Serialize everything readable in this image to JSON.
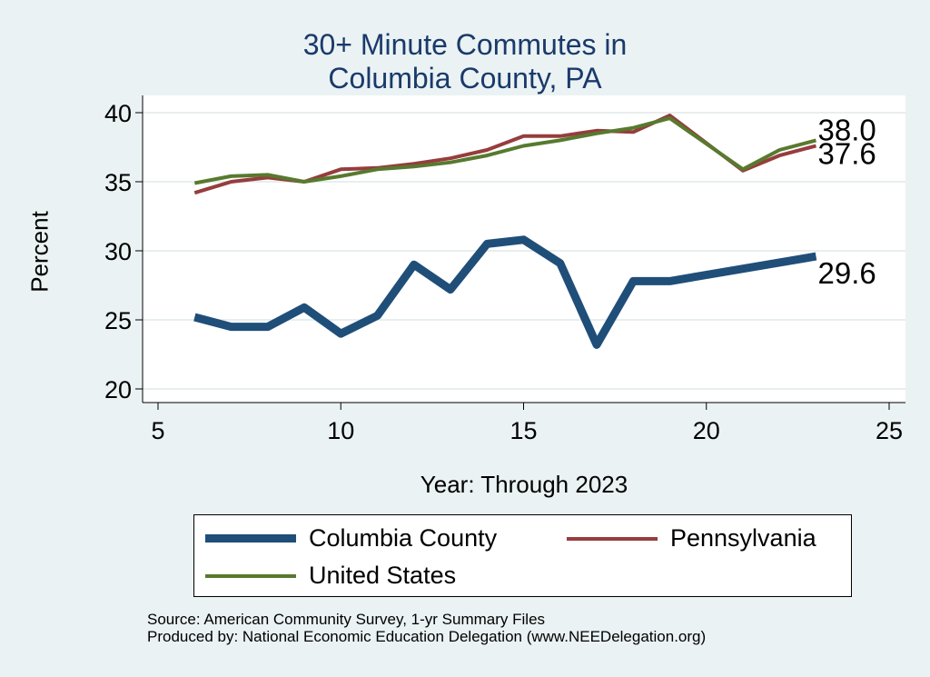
{
  "chart_data": {
    "type": "line",
    "title": [
      "30+ Minute Commutes in",
      "Columbia County, PA"
    ],
    "xlabel": "Year: Through 2023",
    "ylabel": "Percent",
    "xlim": [
      5,
      25
    ],
    "ylim": [
      20,
      40
    ],
    "xticks": [
      5,
      10,
      15,
      20,
      25
    ],
    "yticks": [
      20,
      25,
      30,
      35,
      40
    ],
    "grid": true,
    "legend_position": "bottom",
    "series": [
      {
        "name": "Columbia County",
        "color": "#1f4e79",
        "width": "thick",
        "x": [
          6,
          7,
          8,
          9,
          10,
          11,
          12,
          13,
          14,
          15,
          16,
          17,
          18,
          19,
          23
        ],
        "y": [
          25.2,
          24.5,
          24.5,
          25.9,
          24.0,
          25.3,
          29.0,
          27.2,
          30.5,
          30.8,
          29.1,
          23.2,
          27.8,
          27.8,
          29.6
        ],
        "end_label": "29.6"
      },
      {
        "name": "Pennsylvania",
        "color": "#963d3d",
        "width": "thin",
        "x": [
          6,
          7,
          8,
          9,
          10,
          11,
          12,
          13,
          14,
          15,
          16,
          17,
          18,
          19,
          21,
          22,
          23
        ],
        "y": [
          34.2,
          35.0,
          35.3,
          35.0,
          35.9,
          36.0,
          36.3,
          36.7,
          37.3,
          38.3,
          38.3,
          38.7,
          38.6,
          39.8,
          35.8,
          36.9,
          37.6
        ],
        "end_label": "37.6"
      },
      {
        "name": "United States",
        "color": "#577a2f",
        "width": "thin",
        "x": [
          6,
          7,
          8,
          9,
          10,
          11,
          12,
          13,
          14,
          15,
          16,
          17,
          18,
          19,
          21,
          22,
          23
        ],
        "y": [
          34.9,
          35.4,
          35.5,
          35.0,
          35.4,
          35.9,
          36.1,
          36.4,
          36.9,
          37.6,
          38.0,
          38.5,
          38.9,
          39.6,
          35.9,
          37.3,
          38.0
        ],
        "end_label": "38.0"
      }
    ]
  },
  "footer": {
    "source": "Source: American Community Survey, 1-yr Summary Files",
    "produced": "Produced by: National Economic Education Delegation (www.NEEDelegation.org)"
  }
}
